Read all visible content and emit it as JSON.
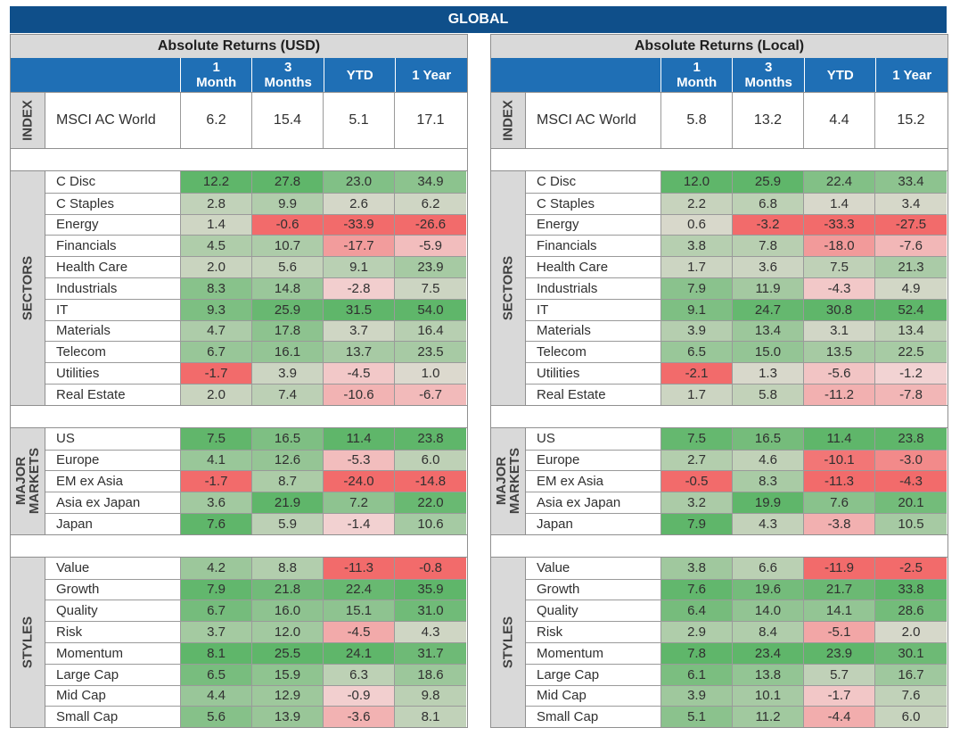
{
  "title": "GLOBAL",
  "columns": [
    "1\nMonth",
    "3\nMonths",
    "YTD",
    "1 Year"
  ],
  "panels": [
    {
      "title": "Absolute Returns (USD)",
      "groups": [
        {
          "label": "INDEX",
          "rows": [
            {
              "name": "MSCI AC World",
              "values": [
                6.2,
                15.4,
                5.1,
                17.1
              ]
            }
          ]
        },
        {
          "label": "SECTORS",
          "rows": [
            {
              "name": "C Disc",
              "values": [
                12.2,
                27.8,
                23.0,
                34.9
              ]
            },
            {
              "name": "C Staples",
              "values": [
                2.8,
                9.9,
                2.6,
                6.2
              ]
            },
            {
              "name": "Energy",
              "values": [
                1.4,
                -0.6,
                -33.9,
                -26.6
              ]
            },
            {
              "name": "Financials",
              "values": [
                4.5,
                10.7,
                -17.7,
                -5.9
              ]
            },
            {
              "name": "Health Care",
              "values": [
                2.0,
                5.6,
                9.1,
                23.9
              ]
            },
            {
              "name": "Industrials",
              "values": [
                8.3,
                14.8,
                -2.8,
                7.5
              ]
            },
            {
              "name": "IT",
              "values": [
                9.3,
                25.9,
                31.5,
                54.0
              ]
            },
            {
              "name": "Materials",
              "values": [
                4.7,
                17.8,
                3.7,
                16.4
              ]
            },
            {
              "name": "Telecom",
              "values": [
                6.7,
                16.1,
                13.7,
                23.5
              ]
            },
            {
              "name": "Utilities",
              "values": [
                -1.7,
                3.9,
                -4.5,
                1.0
              ]
            },
            {
              "name": "Real Estate",
              "values": [
                2.0,
                7.4,
                -10.6,
                -6.7
              ]
            }
          ]
        },
        {
          "label": "MAJOR\nMARKETS",
          "rows": [
            {
              "name": "US",
              "values": [
                7.5,
                16.5,
                11.4,
                23.8
              ]
            },
            {
              "name": "Europe",
              "values": [
                4.1,
                12.6,
                -5.3,
                6.0
              ]
            },
            {
              "name": "EM ex Asia",
              "values": [
                -1.7,
                8.7,
                -24.0,
                -14.8
              ]
            },
            {
              "name": "Asia ex Japan",
              "values": [
                3.6,
                21.9,
                7.2,
                22.0
              ]
            },
            {
              "name": "Japan",
              "values": [
                7.6,
                5.9,
                -1.4,
                10.6
              ]
            }
          ]
        },
        {
          "label": "STYLES",
          "rows": [
            {
              "name": "Value",
              "values": [
                4.2,
                8.8,
                -11.3,
                -0.8
              ]
            },
            {
              "name": "Growth",
              "values": [
                7.9,
                21.8,
                22.4,
                35.9
              ]
            },
            {
              "name": "Quality",
              "values": [
                6.7,
                16.0,
                15.1,
                31.0
              ]
            },
            {
              "name": "Risk",
              "values": [
                3.7,
                12.0,
                -4.5,
                4.3
              ]
            },
            {
              "name": "Momentum",
              "values": [
                8.1,
                25.5,
                24.1,
                31.7
              ]
            },
            {
              "name": "Large Cap",
              "values": [
                6.5,
                15.9,
                6.3,
                18.6
              ]
            },
            {
              "name": "Mid Cap",
              "values": [
                4.4,
                12.9,
                -0.9,
                9.8
              ]
            },
            {
              "name": "Small Cap",
              "values": [
                5.6,
                13.9,
                -3.6,
                8.1
              ]
            }
          ]
        }
      ]
    },
    {
      "title": "Absolute Returns (Local)",
      "groups": [
        {
          "label": "INDEX",
          "rows": [
            {
              "name": "MSCI AC World",
              "values": [
                5.8,
                13.2,
                4.4,
                15.2
              ]
            }
          ]
        },
        {
          "label": "SECTORS",
          "rows": [
            {
              "name": "C Disc",
              "values": [
                12.0,
                25.9,
                22.4,
                33.4
              ]
            },
            {
              "name": "C Staples",
              "values": [
                2.2,
                6.8,
                1.4,
                3.4
              ]
            },
            {
              "name": "Energy",
              "values": [
                0.6,
                -3.2,
                -33.3,
                -27.5
              ]
            },
            {
              "name": "Financials",
              "values": [
                3.8,
                7.8,
                -18.0,
                -7.6
              ]
            },
            {
              "name": "Health Care",
              "values": [
                1.7,
                3.6,
                7.5,
                21.3
              ]
            },
            {
              "name": "Industrials",
              "values": [
                7.9,
                11.9,
                -4.3,
                4.9
              ]
            },
            {
              "name": "IT",
              "values": [
                9.1,
                24.7,
                30.8,
                52.4
              ]
            },
            {
              "name": "Materials",
              "values": [
                3.9,
                13.4,
                3.1,
                13.4
              ]
            },
            {
              "name": "Telecom",
              "values": [
                6.5,
                15.0,
                13.5,
                22.5
              ]
            },
            {
              "name": "Utilities",
              "values": [
                -2.1,
                1.3,
                -5.6,
                -1.2
              ]
            },
            {
              "name": "Real Estate",
              "values": [
                1.7,
                5.8,
                -11.2,
                -7.8
              ]
            }
          ]
        },
        {
          "label": "MAJOR\nMARKETS",
          "rows": [
            {
              "name": "US",
              "values": [
                7.5,
                16.5,
                11.4,
                23.8
              ]
            },
            {
              "name": "Europe",
              "values": [
                2.7,
                4.6,
                -10.1,
                -3.0
              ]
            },
            {
              "name": "EM ex Asia",
              "values": [
                -0.5,
                8.3,
                -11.3,
                -4.3
              ]
            },
            {
              "name": "Asia ex Japan",
              "values": [
                3.2,
                19.9,
                7.6,
                20.1
              ]
            },
            {
              "name": "Japan",
              "values": [
                7.9,
                4.3,
                -3.8,
                10.5
              ]
            }
          ]
        },
        {
          "label": "STYLES",
          "rows": [
            {
              "name": "Value",
              "values": [
                3.8,
                6.6,
                -11.9,
                -2.5
              ]
            },
            {
              "name": "Growth",
              "values": [
                7.6,
                19.6,
                21.7,
                33.8
              ]
            },
            {
              "name": "Quality",
              "values": [
                6.4,
                14.0,
                14.1,
                28.6
              ]
            },
            {
              "name": "Risk",
              "values": [
                2.9,
                8.4,
                -5.1,
                2.0
              ]
            },
            {
              "name": "Momentum",
              "values": [
                7.8,
                23.4,
                23.9,
                30.1
              ]
            },
            {
              "name": "Large Cap",
              "values": [
                6.1,
                13.8,
                5.7,
                16.7
              ]
            },
            {
              "name": "Mid Cap",
              "values": [
                3.9,
                10.1,
                -1.7,
                7.6
              ]
            },
            {
              "name": "Small Cap",
              "values": [
                5.1,
                11.2,
                -4.4,
                6.0
              ]
            }
          ]
        }
      ]
    }
  ],
  "colors": {
    "banner": "#0f4f8a",
    "header": "#1f6fb5",
    "positive_max": "#5fb66a",
    "neutral": "#dedad0",
    "negative_max": "#f26b6b"
  }
}
